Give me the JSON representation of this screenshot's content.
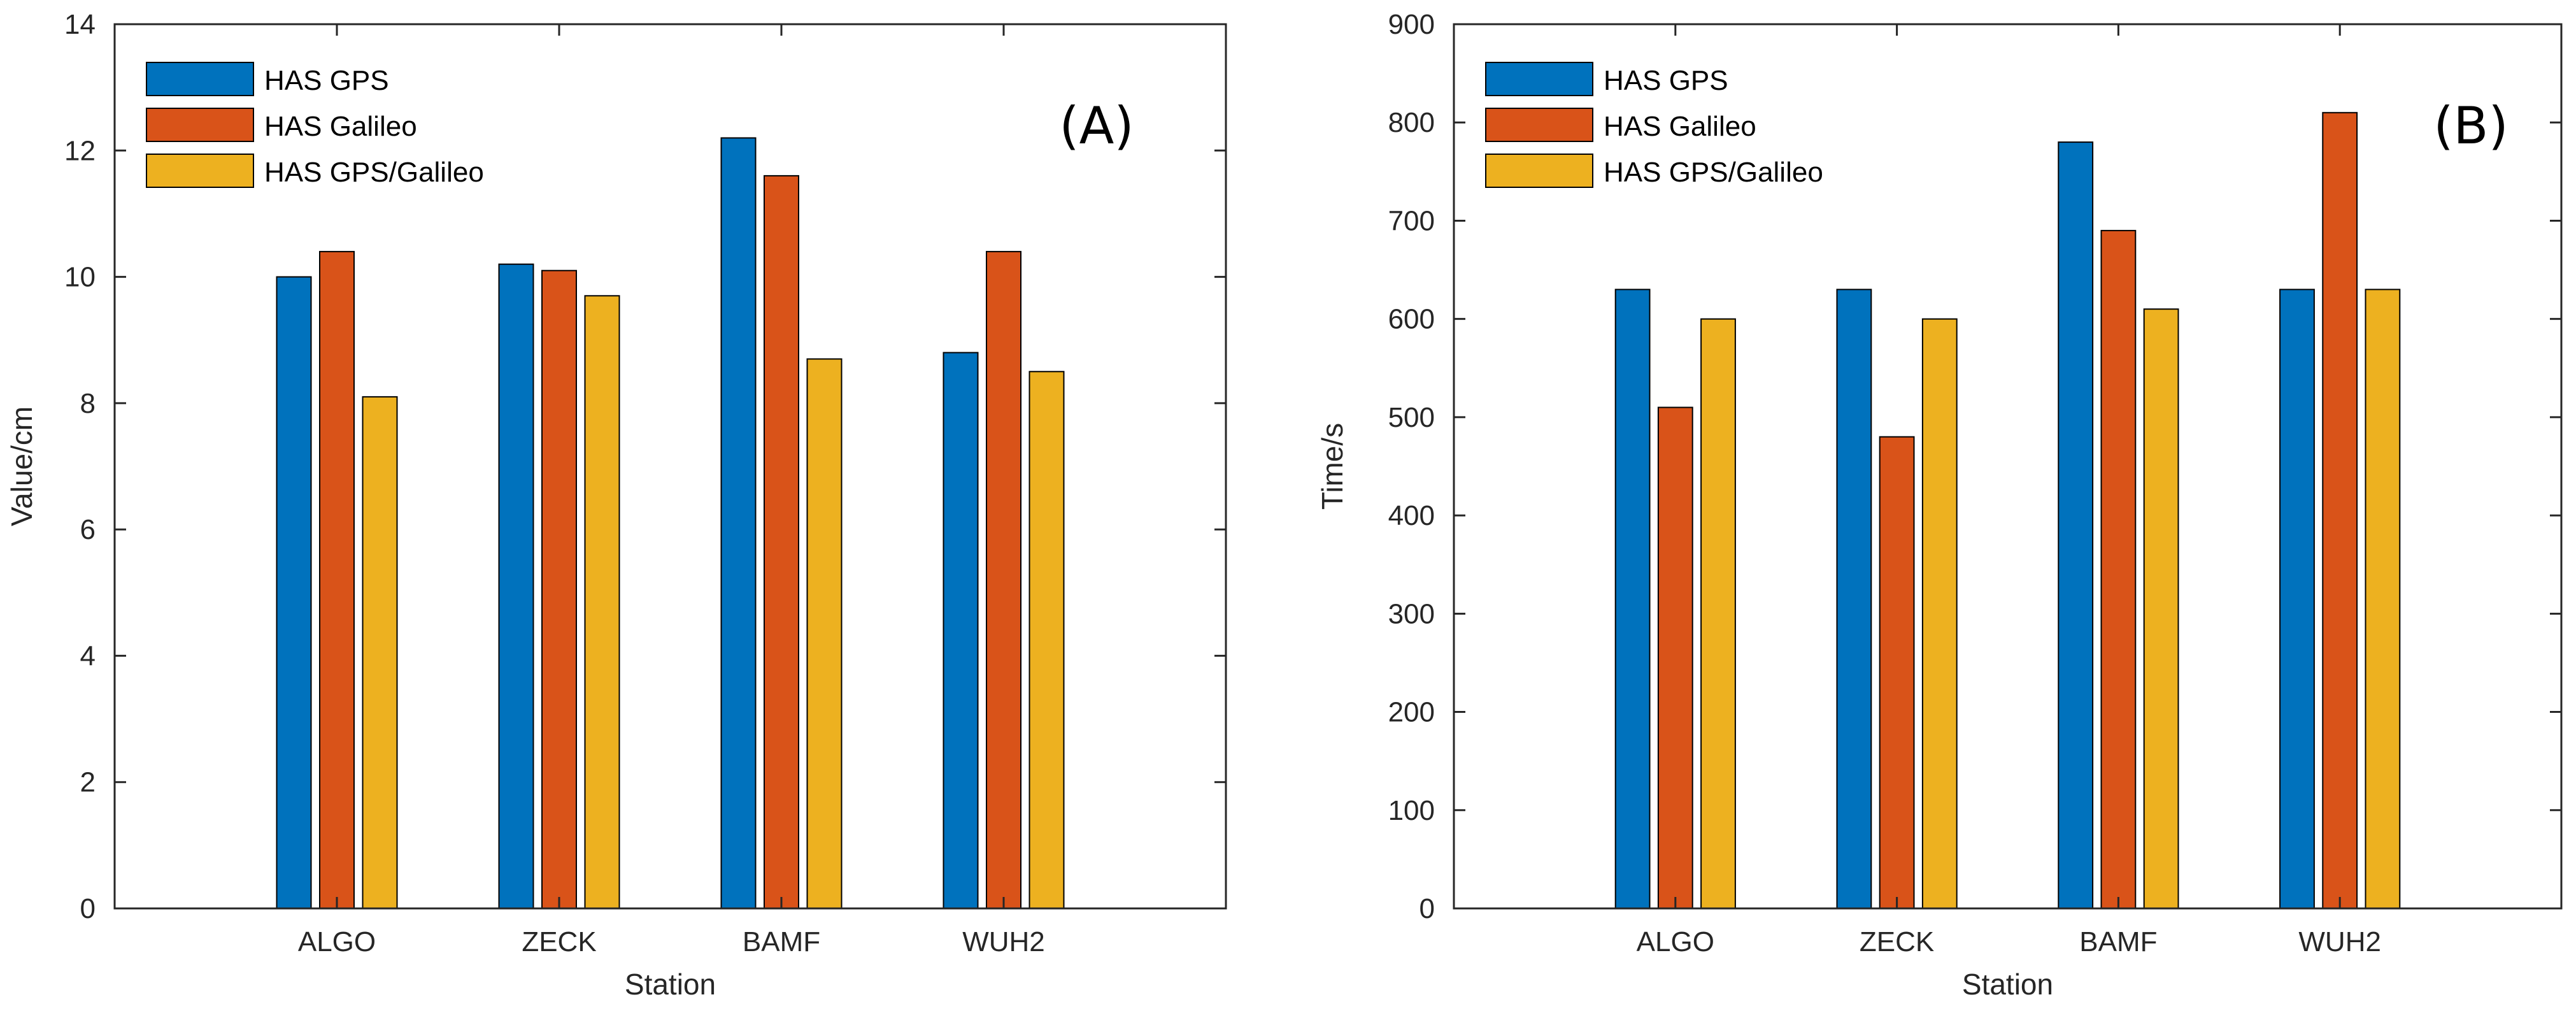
{
  "chart_data": [
    {
      "type": "bar",
      "panel_label": "(A)",
      "xlabel": "Station",
      "ylabel": "Value/cm",
      "ylim": [
        0,
        14
      ],
      "yticks": [
        0,
        2,
        4,
        6,
        8,
        10,
        12,
        14
      ],
      "categories": [
        "ALGO",
        "ZECK",
        "BAMF",
        "WUH2"
      ],
      "series": [
        {
          "name": "HAS GPS",
          "color": "#0072BD",
          "values": [
            10.0,
            10.2,
            12.2,
            8.8
          ]
        },
        {
          "name": "HAS Galileo",
          "color": "#D95319",
          "values": [
            10.4,
            10.1,
            11.6,
            10.4
          ]
        },
        {
          "name": "HAS GPS/Galileo",
          "color": "#EDB120",
          "values": [
            8.1,
            9.7,
            8.7,
            8.5
          ]
        }
      ],
      "legend_location": "top-left",
      "grid": false
    },
    {
      "type": "bar",
      "panel_label": "(B)",
      "xlabel": "Station",
      "ylabel": "Time/s",
      "ylim": [
        0,
        900
      ],
      "yticks": [
        0,
        100,
        200,
        300,
        400,
        500,
        600,
        700,
        800,
        900
      ],
      "categories": [
        "ALGO",
        "ZECK",
        "BAMF",
        "WUH2"
      ],
      "series": [
        {
          "name": "HAS GPS",
          "color": "#0072BD",
          "values": [
            630,
            630,
            780,
            630
          ]
        },
        {
          "name": "HAS Galileo",
          "color": "#D95319",
          "values": [
            510,
            480,
            690,
            810
          ]
        },
        {
          "name": "HAS GPS/Galileo",
          "color": "#EDB120",
          "values": [
            600,
            600,
            610,
            630
          ]
        }
      ],
      "legend_location": "top-left",
      "grid": false
    }
  ]
}
